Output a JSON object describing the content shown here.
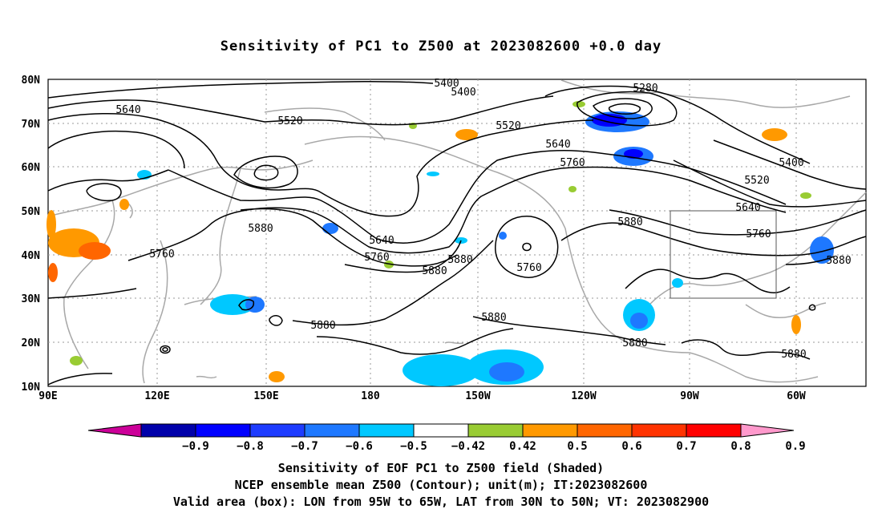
{
  "title": "Sensitivity of PC1 to Z500 at 2023082600 +0.0 day",
  "map": {
    "lat_labels": [
      "80N",
      "70N",
      "60N",
      "50N",
      "40N",
      "30N",
      "20N",
      "10N"
    ],
    "lon_labels": [
      "90E",
      "120E",
      "150E",
      "180",
      "150W",
      "120W",
      "90W",
      "60W"
    ],
    "valid_box": {
      "lon_from": "95W",
      "lon_to": "65W",
      "lat_from": "30N",
      "lat_to": "50N"
    },
    "contour_labels": [
      "5400",
      "5400",
      "5280",
      "5640",
      "5520",
      "5520",
      "5640",
      "5760",
      "5400",
      "5520",
      "5640",
      "5760",
      "5880",
      "5880",
      "5640",
      "5760",
      "5880",
      "5760",
      "5880",
      "5880",
      "5880",
      "5880",
      "5880",
      "5760",
      "5880",
      "5880"
    ]
  },
  "colorbar": {
    "labels": [
      "-0.9",
      "-0.8",
      "-0.7",
      "-0.6",
      "-0.5",
      "-0.42",
      "0.42",
      "0.5",
      "0.6",
      "0.7",
      "0.8",
      "0.9"
    ],
    "colors": [
      "#cc0099",
      "#0000aa",
      "#0000ff",
      "#1e3cff",
      "#1e78ff",
      "#00c8ff",
      "#ffffff",
      "#99cc33",
      "#ff9900",
      "#ff6600",
      "#ff3300",
      "#ff0000",
      "#ff99cc"
    ]
  },
  "footer": {
    "line1": "Sensitivity of EOF PC1 to Z500 field (Shaded)",
    "line2": "NCEP ensemble mean Z500 (Contour); unit(m); IT:2023082600",
    "line3": "Valid area (box): LON from 95W to 65W, LAT from 30N to 50N; VT: 2023082900"
  }
}
